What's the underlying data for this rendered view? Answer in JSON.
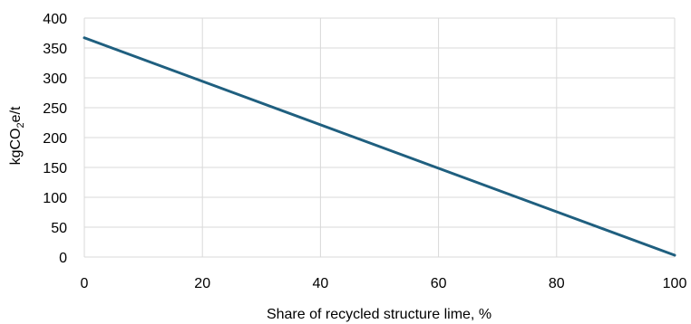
{
  "chart_data": {
    "type": "line",
    "title": "",
    "xlabel": "Share of recycled structure lime, %",
    "ylabel": {
      "pre": "kgCO",
      "sub": "2",
      "post": "e/t"
    },
    "xlim": [
      0,
      100
    ],
    "ylim": [
      0,
      400
    ],
    "x_ticks": [
      0,
      20,
      40,
      60,
      80,
      100
    ],
    "y_ticks": [
      0,
      50,
      100,
      150,
      200,
      250,
      300,
      350,
      400
    ],
    "grid": true,
    "legend": "none",
    "series": [
      {
        "color": "#1f5f7f",
        "x": [
          0,
          100
        ],
        "y": [
          367,
          3
        ]
      }
    ]
  }
}
